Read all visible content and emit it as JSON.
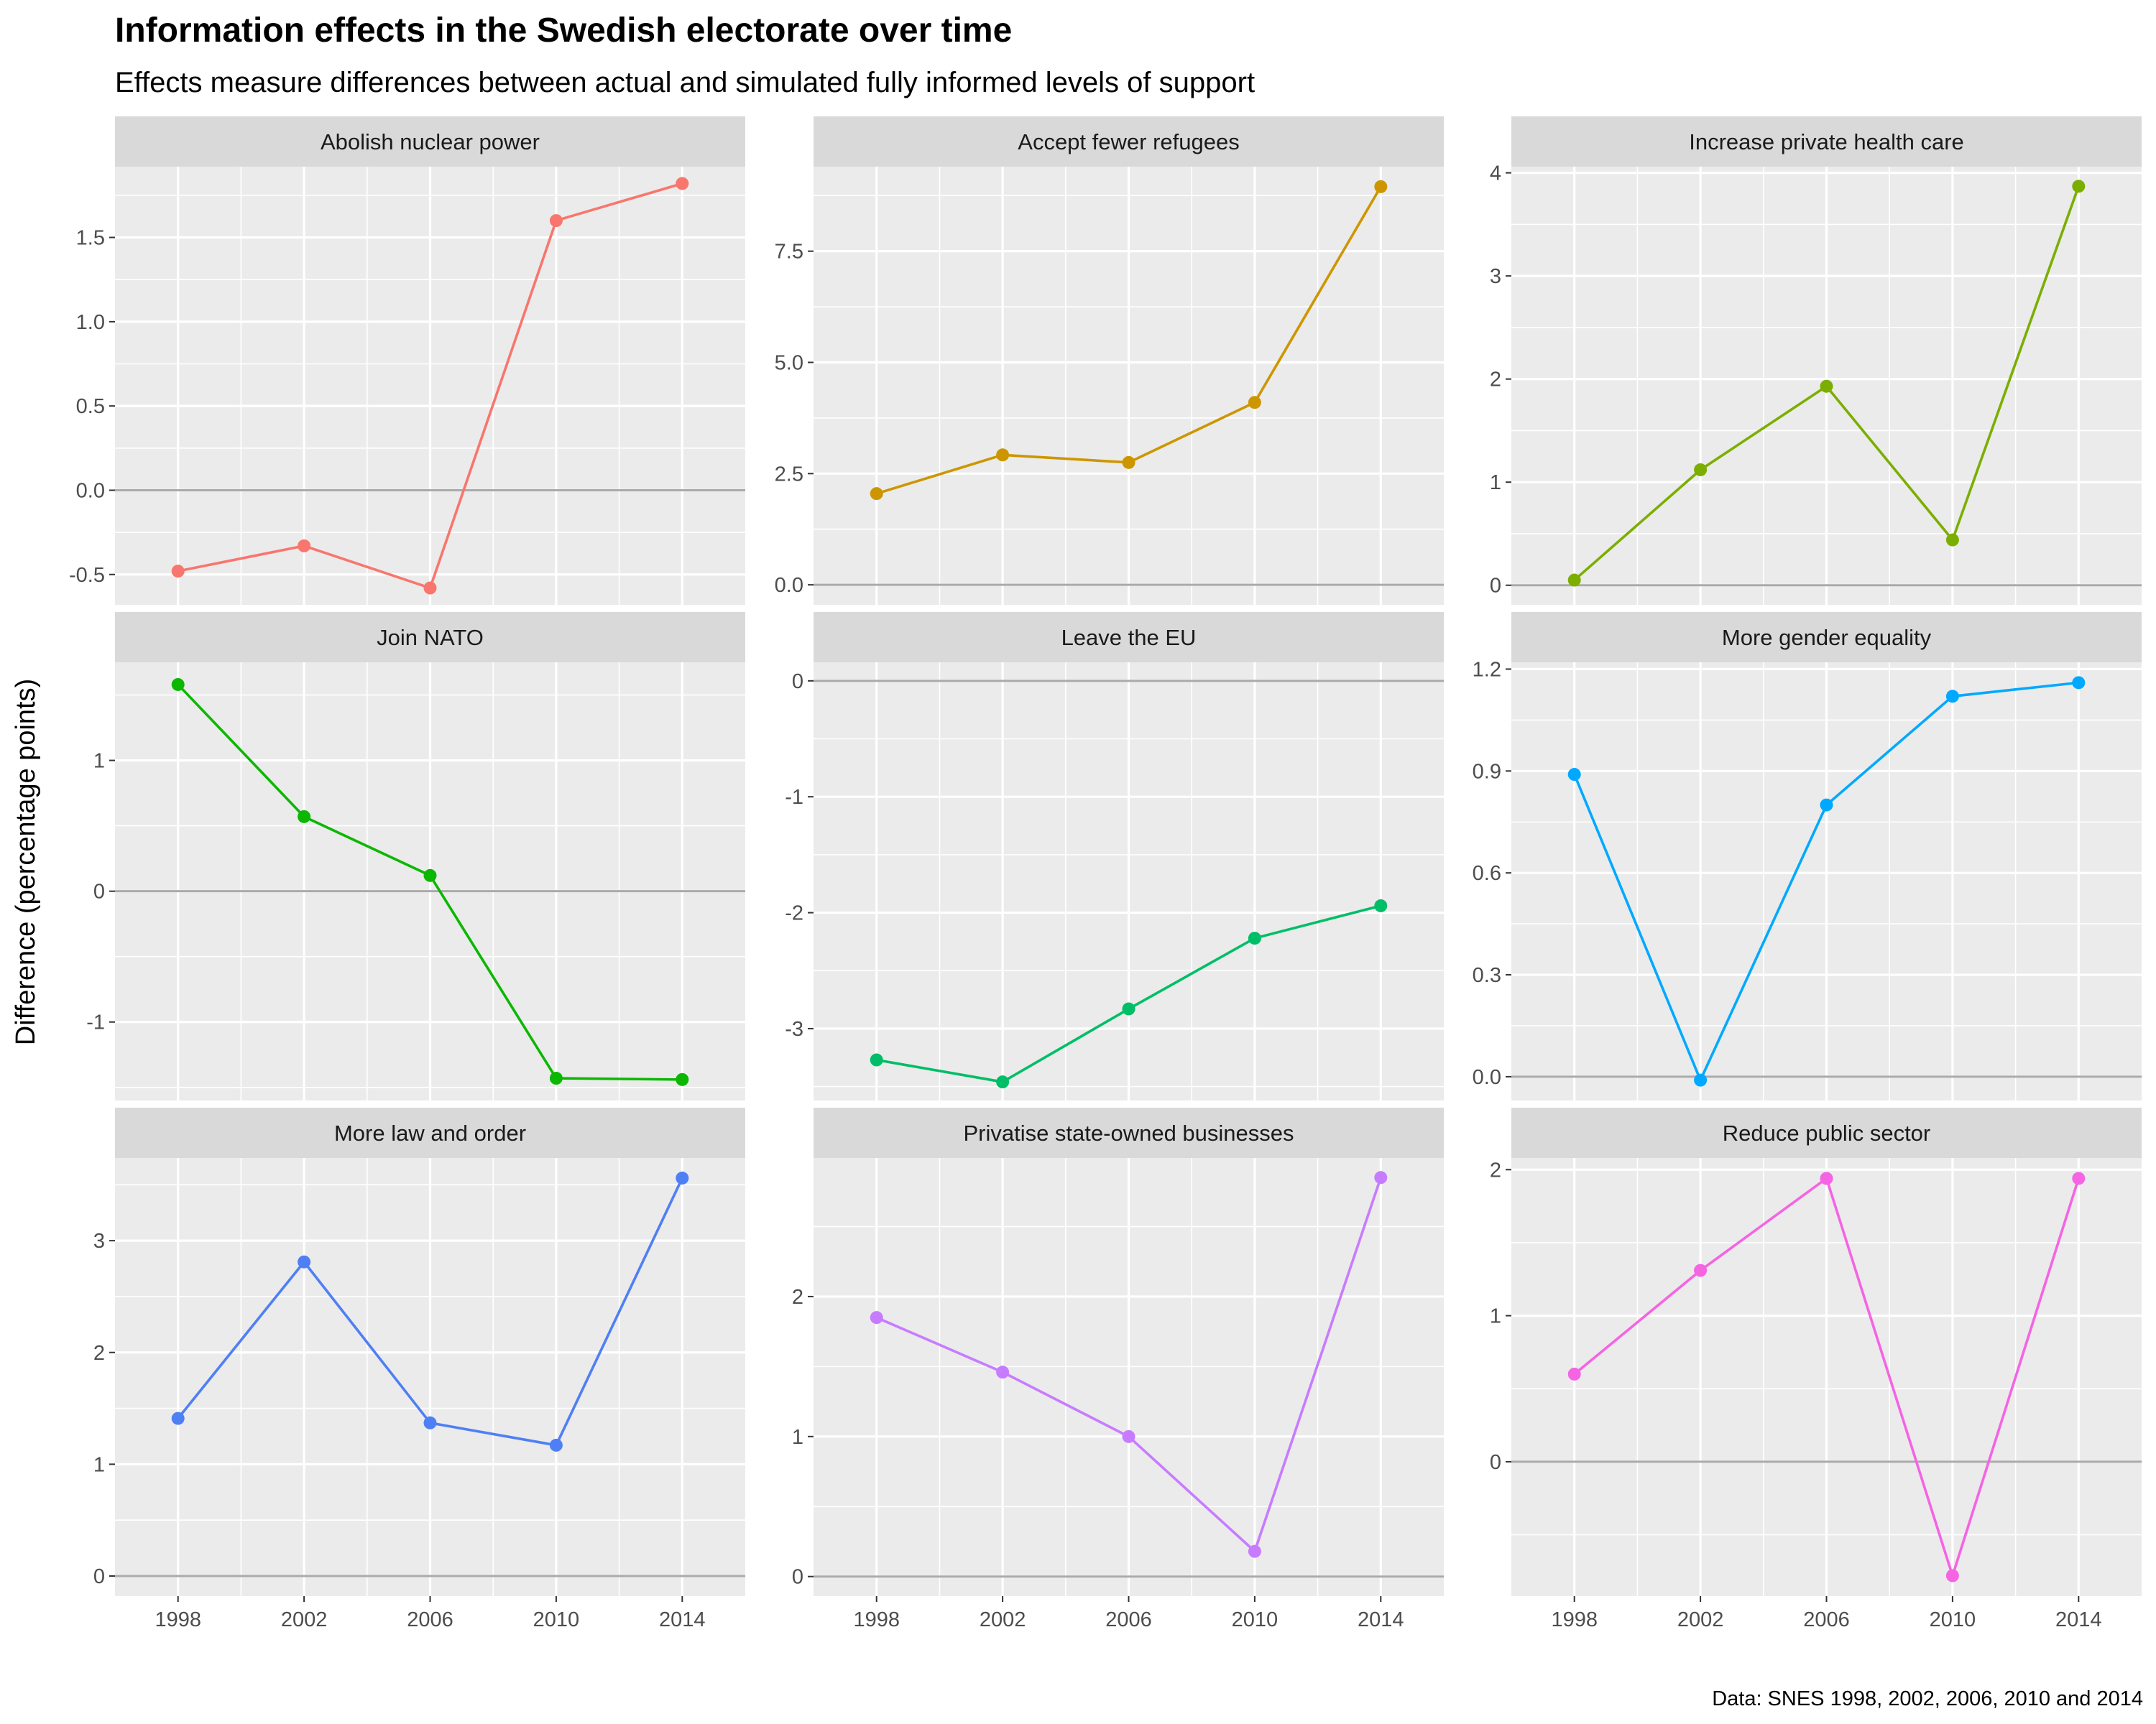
{
  "chart_data": {
    "type": "line",
    "title": "Information effects in the Swedish electorate over time",
    "subtitle": "Effects measure differences between actual and simulated fully informed levels of support",
    "ylabel": "Difference (percentage points)",
    "caption": "Data: SNES 1998, 2002, 2006, 2010 and 2014",
    "x": [
      1998,
      2002,
      2006,
      2010,
      2014
    ],
    "x_ticks": [
      "1998",
      "2002",
      "2006",
      "2010",
      "2014"
    ],
    "reference_line": 0,
    "grid": true,
    "legend": "none",
    "series": [
      {
        "name": "Abolish nuclear power",
        "color": "#F8766D",
        "values": [
          -0.48,
          -0.33,
          -0.58,
          1.6,
          1.82
        ],
        "ylim": [
          -0.68,
          1.92
        ],
        "y_ticks": [
          {
            "v": -0.5,
            "label": "-0.5"
          },
          {
            "v": 0,
            "label": "0.0"
          },
          {
            "v": 0.5,
            "label": "0.5"
          },
          {
            "v": 1.0,
            "label": "1.0"
          },
          {
            "v": 1.5,
            "label": "1.5"
          }
        ]
      },
      {
        "name": "Accept fewer refugees",
        "color": "#CD9600",
        "values": [
          2.05,
          2.92,
          2.75,
          4.1,
          8.95
        ],
        "ylim": [
          -0.45,
          9.4
        ],
        "y_ticks": [
          {
            "v": 0,
            "label": "0.0"
          },
          {
            "v": 2.5,
            "label": "2.5"
          },
          {
            "v": 5.0,
            "label": "5.0"
          },
          {
            "v": 7.5,
            "label": "7.5"
          }
        ]
      },
      {
        "name": "Increase private health care",
        "color": "#7CAE00",
        "values": [
          0.05,
          1.12,
          1.93,
          0.44,
          3.87
        ],
        "ylim": [
          -0.19,
          4.06
        ],
        "y_ticks": [
          {
            "v": 0,
            "label": "0"
          },
          {
            "v": 1,
            "label": "1"
          },
          {
            "v": 2,
            "label": "2"
          },
          {
            "v": 3,
            "label": "3"
          },
          {
            "v": 4,
            "label": "4"
          }
        ]
      },
      {
        "name": "Join NATO",
        "color": "#0CB702",
        "values": [
          1.58,
          0.57,
          0.12,
          -1.43,
          -1.44
        ],
        "ylim": [
          -1.6,
          1.75
        ],
        "y_ticks": [
          {
            "v": -1,
            "label": "-1"
          },
          {
            "v": 0,
            "label": "0"
          },
          {
            "v": 1,
            "label": "1"
          }
        ]
      },
      {
        "name": "Leave the EU",
        "color": "#00BE67",
        "values": [
          -3.27,
          -3.46,
          -2.83,
          -2.22,
          -1.94
        ],
        "ylim": [
          -3.62,
          0.16
        ],
        "y_ticks": [
          {
            "v": -3,
            "label": "-3"
          },
          {
            "v": -2,
            "label": "-2"
          },
          {
            "v": -1,
            "label": "-1"
          },
          {
            "v": 0,
            "label": "0"
          }
        ]
      },
      {
        "name": "More gender equality",
        "color": "#00A9FF",
        "values": [
          0.89,
          -0.01,
          0.8,
          1.12,
          1.16
        ],
        "ylim": [
          -0.07,
          1.22
        ],
        "y_ticks": [
          {
            "v": 0,
            "label": "0.0"
          },
          {
            "v": 0.3,
            "label": "0.3"
          },
          {
            "v": 0.6,
            "label": "0.6"
          },
          {
            "v": 0.9,
            "label": "0.9"
          },
          {
            "v": 1.2,
            "label": "1.2"
          }
        ]
      },
      {
        "name": "More law and order",
        "color": "#4F7FF5",
        "values": [
          1.41,
          2.81,
          1.37,
          1.17,
          3.56
        ],
        "ylim": [
          -0.18,
          3.74
        ],
        "y_ticks": [
          {
            "v": 0,
            "label": "0"
          },
          {
            "v": 1,
            "label": "1"
          },
          {
            "v": 2,
            "label": "2"
          },
          {
            "v": 3,
            "label": "3"
          }
        ]
      },
      {
        "name": "Privatise state-owned businesses",
        "color": "#C77CFF",
        "values": [
          1.85,
          1.46,
          1.0,
          0.18,
          2.85
        ],
        "ylim": [
          -0.14,
          2.99
        ],
        "y_ticks": [
          {
            "v": 0,
            "label": "0"
          },
          {
            "v": 1,
            "label": "1"
          },
          {
            "v": 2,
            "label": "2"
          }
        ]
      },
      {
        "name": "Reduce public sector",
        "color": "#F564E3",
        "values": [
          0.6,
          1.31,
          1.94,
          -0.78,
          1.94
        ],
        "ylim": [
          -0.92,
          2.08
        ],
        "y_ticks": [
          {
            "v": 0,
            "label": "0"
          },
          {
            "v": 1,
            "label": "1"
          },
          {
            "v": 2,
            "label": "2"
          }
        ]
      }
    ]
  }
}
